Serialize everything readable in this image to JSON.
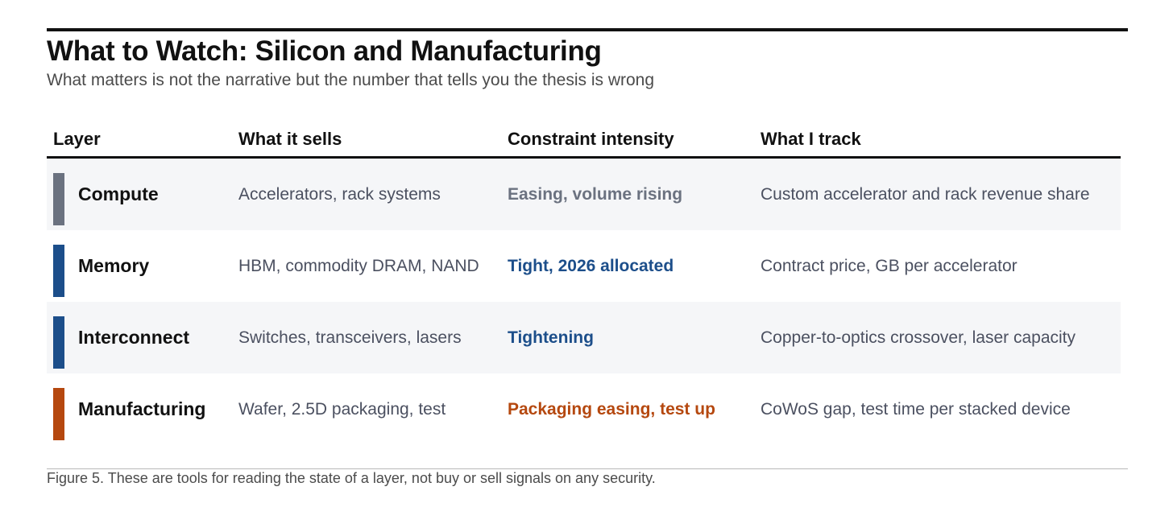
{
  "title": "What to Watch: Silicon and Manufacturing",
  "subtitle": "What matters is not the narrative but the number that tells you the thesis is wrong",
  "table": {
    "headers": {
      "layer": "Layer",
      "sells": "What it sells",
      "intensity": "Constraint intensity",
      "track": "What I track"
    },
    "rows": [
      {
        "layer": "Compute",
        "sells": "Accelerators, rack systems",
        "intensity": "Easing, volume rising",
        "track": "Custom accelerator and rack revenue share",
        "color": "#6b7280"
      },
      {
        "layer": "Memory",
        "sells": "HBM, commodity DRAM, NAND",
        "intensity": "Tight, 2026 allocated",
        "track": "Contract price, GB per accelerator",
        "color": "#1c4e8a"
      },
      {
        "layer": "Interconnect",
        "sells": "Switches, transceivers, lasers",
        "intensity": "Tightening",
        "track": "Copper-to-optics crossover, laser capacity",
        "color": "#1c4e8a"
      },
      {
        "layer": "Manufacturing",
        "sells": "Wafer, 2.5D packaging, test",
        "intensity": "Packaging easing, test up",
        "track": "CoWoS gap, test time per stacked device",
        "color": "#b5480f"
      }
    ]
  },
  "caption": "Figure 5. These are tools for reading the state of a layer, not buy or sell signals on any security."
}
